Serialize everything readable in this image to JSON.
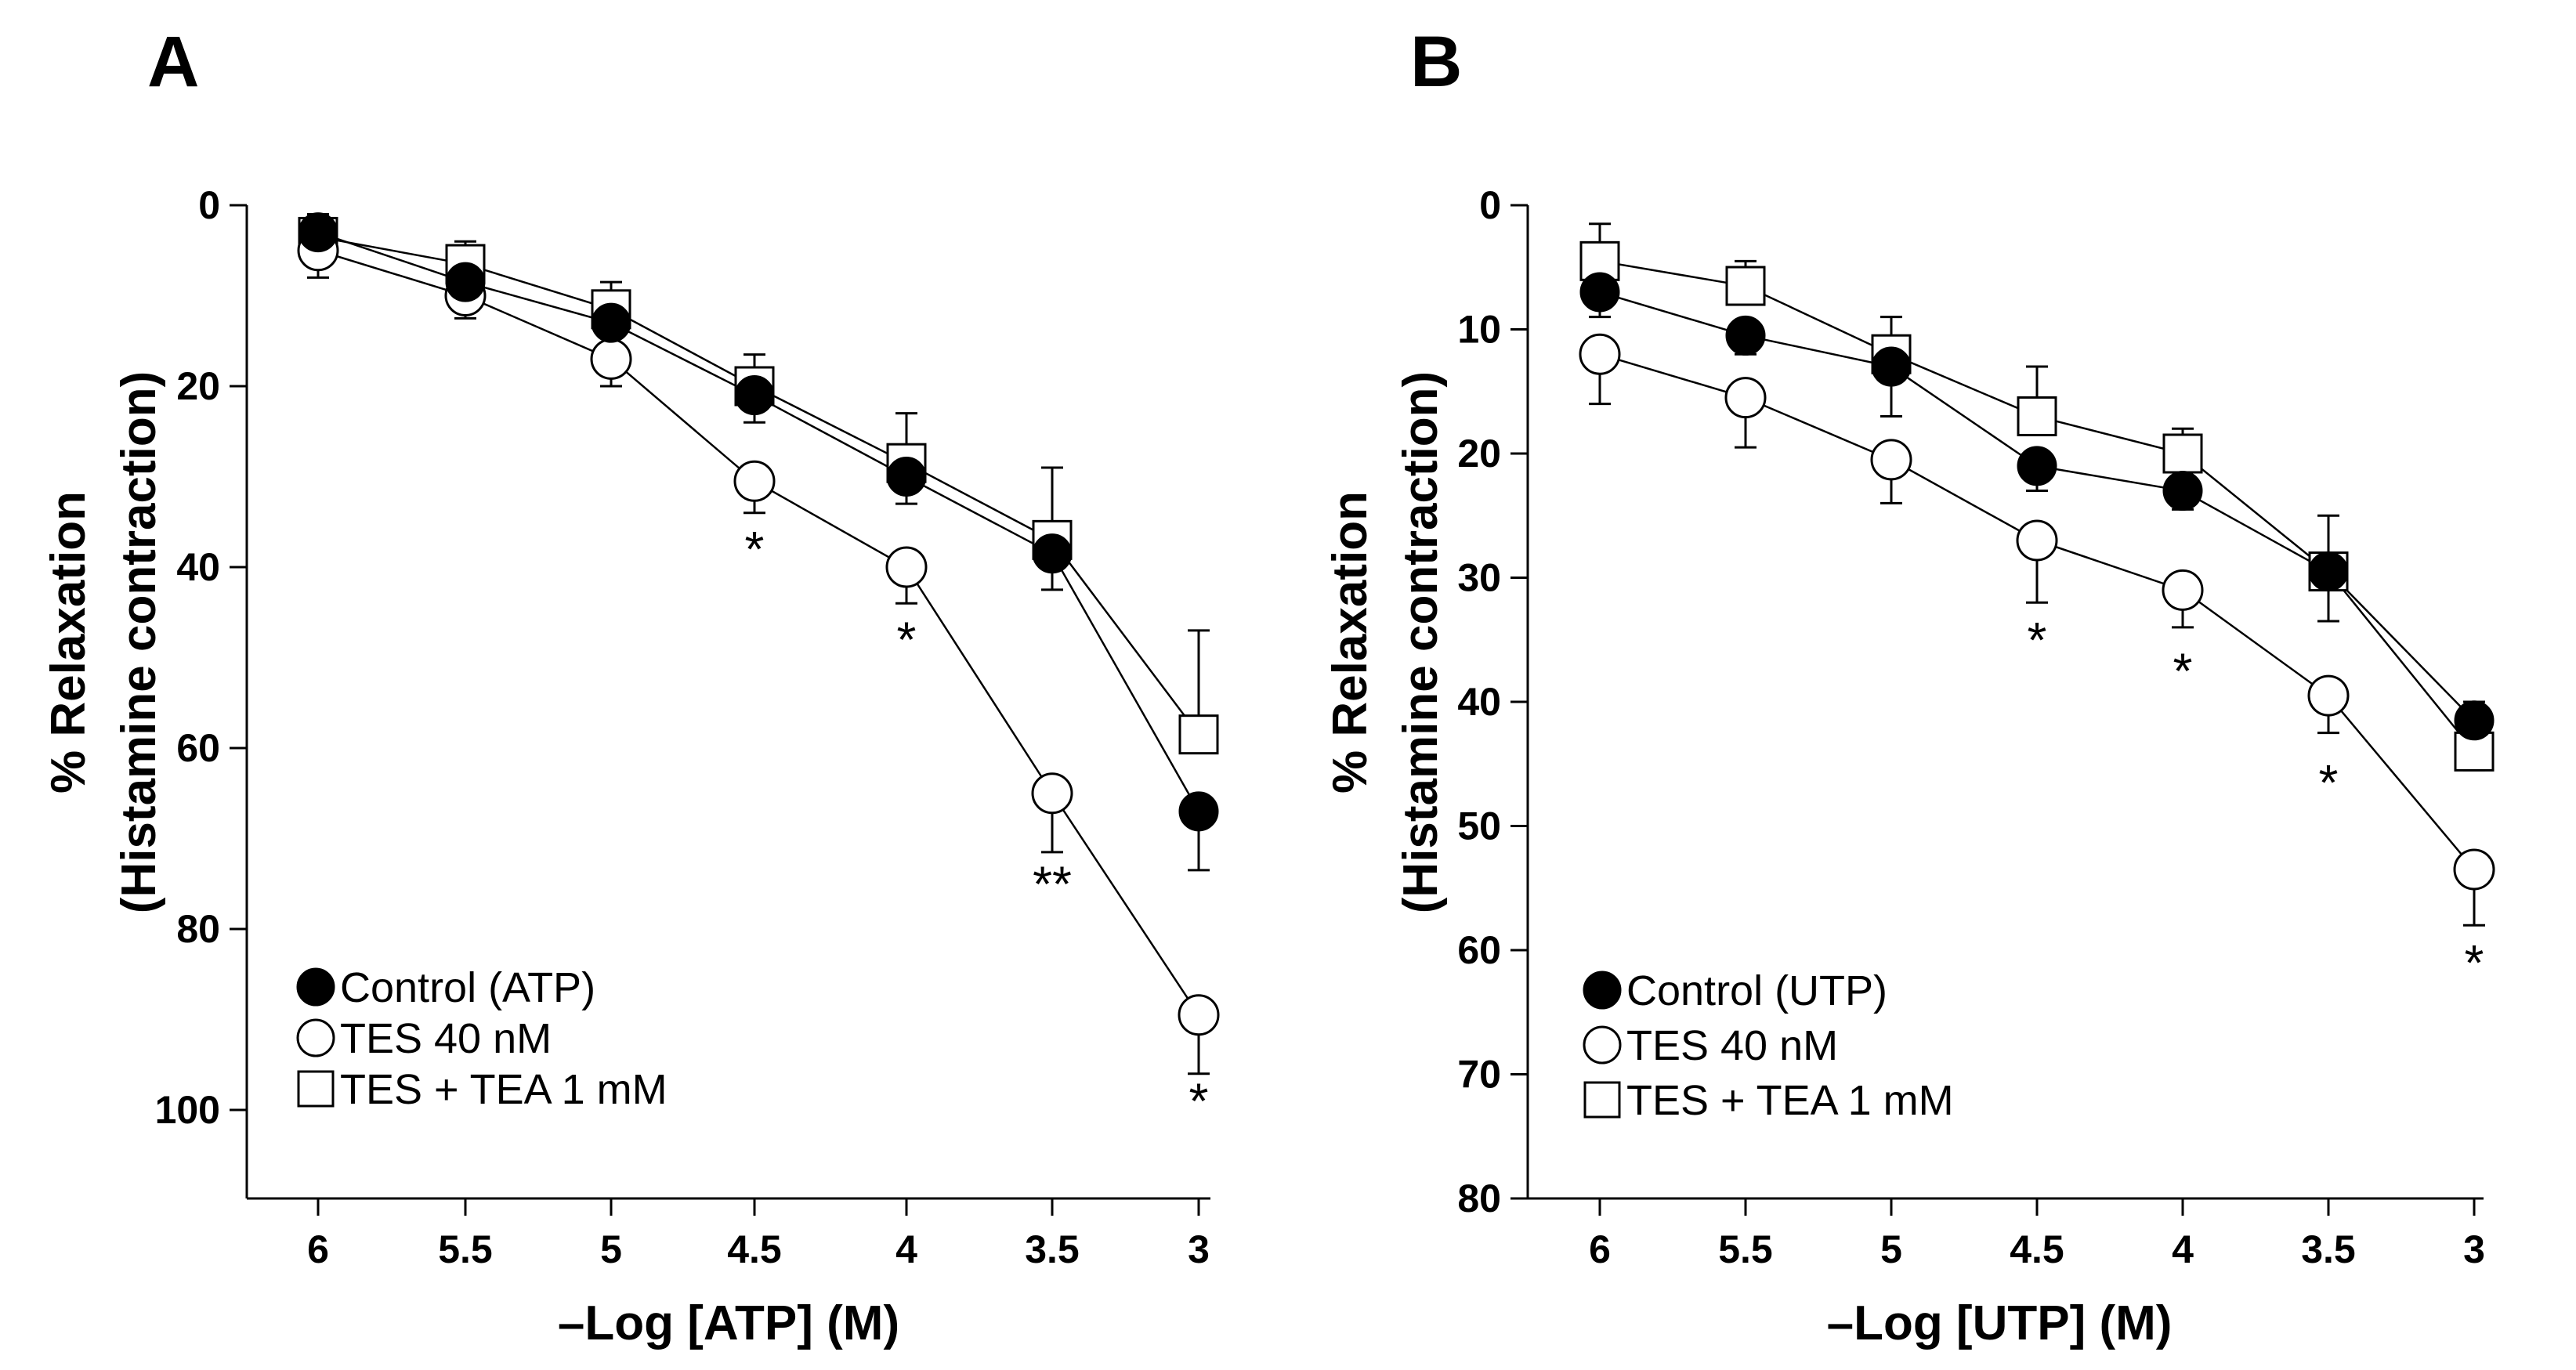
{
  "chart_data": [
    {
      "panel": "A",
      "type": "line",
      "x": [
        6,
        5.5,
        5,
        4.5,
        4,
        3.5,
        3
      ],
      "x_tick_labels": [
        "6",
        "5.5",
        "5",
        "4.5",
        "4",
        "3.5",
        "3"
      ],
      "xlabel": "–Log [ATP] (M)",
      "ylabel_line1": "% Relaxation",
      "ylabel_line2": "(Histamine contraction)",
      "ylim": [
        0,
        110
      ],
      "y_ticks": [
        0,
        20,
        40,
        60,
        80,
        100
      ],
      "y_tick_labels": [
        "0",
        "20",
        "40",
        "60",
        "80",
        "100"
      ],
      "y_inverted": true,
      "legend_position": "bottom-left",
      "series": [
        {
          "name": "Control (ATP)",
          "marker": "filled-circle",
          "values": [
            3,
            8.5,
            13,
            21,
            30,
            38.5,
            67
          ],
          "errors": [
            2.5,
            2.5,
            3,
            3,
            3,
            4,
            6.5
          ]
        },
        {
          "name": "TES 40 nM",
          "marker": "open-circle",
          "values": [
            5,
            10,
            17,
            30.5,
            40,
            65,
            89.5
          ],
          "errors": [
            3,
            2.5,
            3,
            3.5,
            4,
            6.5,
            6.5
          ]
        },
        {
          "name": "TES + TEA 1 mM",
          "marker": "open-square",
          "values": [
            3.5,
            6.5,
            11.5,
            20,
            28.5,
            37,
            58.5
          ],
          "errors": [
            2.5,
            2.5,
            3,
            3.5,
            5.5,
            8,
            11.5
          ]
        }
      ],
      "annotations": [
        {
          "x": 4.5,
          "y": 38,
          "text": "*"
        },
        {
          "x": 4,
          "y": 48,
          "text": "*"
        },
        {
          "x": 3.5,
          "y": 75,
          "text": "**"
        },
        {
          "x": 3,
          "y": 99,
          "text": "*"
        }
      ]
    },
    {
      "panel": "B",
      "type": "line",
      "x": [
        6,
        5.5,
        5,
        4.5,
        4,
        3.5,
        3
      ],
      "x_tick_labels": [
        "6",
        "5.5",
        "5",
        "4.5",
        "4",
        "3.5",
        "3"
      ],
      "xlabel": "–Log [UTP] (M)",
      "ylabel_line1": "% Relaxation",
      "ylabel_line2": "(Histamine contraction)",
      "ylim": [
        0,
        80
      ],
      "y_ticks": [
        0,
        10,
        20,
        30,
        40,
        50,
        60,
        70,
        80
      ],
      "y_tick_labels": [
        "0",
        "10",
        "20",
        "30",
        "40",
        "50",
        "60",
        "70",
        "80"
      ],
      "y_inverted": true,
      "legend_position": "bottom-left",
      "series": [
        {
          "name": "Control (UTP)",
          "marker": "filled-circle",
          "values": [
            7,
            10.5,
            13,
            21,
            23,
            29.5,
            41.5
          ],
          "errors": [
            2,
            1.5,
            4,
            2,
            1.5,
            4,
            4
          ]
        },
        {
          "name": "TES 40 nM",
          "marker": "open-circle",
          "values": [
            12,
            15.5,
            20.5,
            27,
            31,
            39.5,
            53.5
          ],
          "errors": [
            4,
            4,
            3.5,
            5,
            3,
            3,
            4.5
          ]
        },
        {
          "name": "TES + TEA 1 mM",
          "marker": "open-square",
          "values": [
            4.5,
            6.5,
            12,
            17,
            20,
            29.5,
            44
          ],
          "errors": [
            3,
            2,
            3,
            4,
            2,
            4.5,
            4
          ]
        }
      ],
      "annotations": [
        {
          "x": 4.5,
          "y": 35,
          "text": "*"
        },
        {
          "x": 4,
          "y": 37.5,
          "text": "*"
        },
        {
          "x": 3.5,
          "y": 46.5,
          "text": "*"
        },
        {
          "x": 3,
          "y": 61,
          "text": "*"
        }
      ]
    }
  ]
}
